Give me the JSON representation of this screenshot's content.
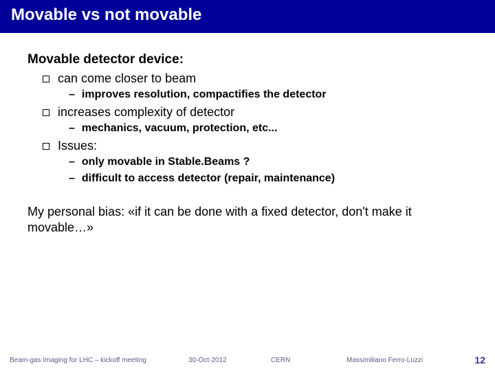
{
  "title": "Movable vs not movable",
  "heading": "Movable detector device:",
  "bullets": [
    {
      "text": "can come closer to beam",
      "subs": [
        "improves resolution, compactifies the detector"
      ]
    },
    {
      "text": "increases complexity of detector",
      "subs": [
        "mechanics, vacuum, protection, etc..."
      ]
    },
    {
      "text": "Issues:",
      "subs": [
        "only movable in Stable.Beams ?",
        "difficult to access detector (repair, maintenance)"
      ]
    }
  ],
  "personal": "My personal bias: «if it can be done with a fixed detector, don't make it movable…»",
  "footer": {
    "left": "Beam-gas Imaging for LHC – kickoff meeting",
    "date": "30-Oct-2012",
    "org": "CERN",
    "author": "Massimiliano Ferro-Luzzi",
    "page": "12"
  },
  "colors": {
    "title_bg": "#000099",
    "title_fg": "#ffffff",
    "body_fg": "#000000",
    "footer_fg": "#5a5a8a",
    "page_fg": "#333399"
  }
}
